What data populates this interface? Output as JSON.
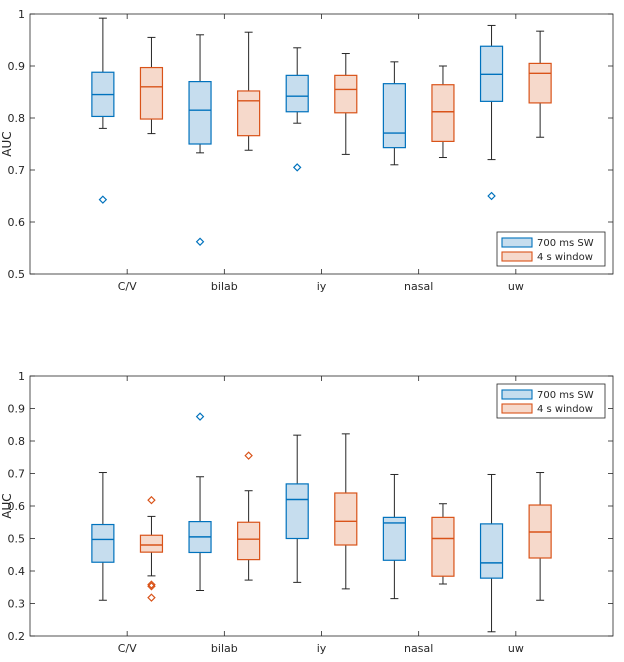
{
  "chart_data": [
    {
      "type": "boxplot",
      "title": "",
      "xlabel": "",
      "ylabel": "AUC",
      "ylim": [
        0.5,
        1.0
      ],
      "yticks": [
        0.5,
        0.6,
        0.7,
        0.8,
        0.9,
        1.0
      ],
      "categories": [
        "C/V",
        "bilab",
        "iy",
        "nasal",
        "uw"
      ],
      "legend": {
        "position": "bottom-right"
      },
      "series": [
        {
          "name": "700 ms SW",
          "color": "#0072BD",
          "fill": "#C6DDEE",
          "boxes": [
            {
              "category": "C/V",
              "whisker_low": 0.78,
              "q1": 0.803,
              "median": 0.845,
              "q3": 0.888,
              "whisker_high": 0.992,
              "outliers": [
                0.643
              ]
            },
            {
              "category": "bilab",
              "whisker_low": 0.733,
              "q1": 0.75,
              "median": 0.815,
              "q3": 0.87,
              "whisker_high": 0.96,
              "outliers": [
                0.562
              ]
            },
            {
              "category": "iy",
              "whisker_low": 0.79,
              "q1": 0.812,
              "median": 0.842,
              "q3": 0.882,
              "whisker_high": 0.935,
              "outliers": [
                0.705
              ]
            },
            {
              "category": "nasal",
              "whisker_low": 0.71,
              "q1": 0.743,
              "median": 0.771,
              "q3": 0.866,
              "whisker_high": 0.908,
              "outliers": []
            },
            {
              "category": "uw",
              "whisker_low": 0.72,
              "q1": 0.832,
              "median": 0.884,
              "q3": 0.938,
              "whisker_high": 0.978,
              "outliers": [
                0.65
              ]
            }
          ]
        },
        {
          "name": "4 s window",
          "color": "#D95319",
          "fill": "#F6D9CB",
          "boxes": [
            {
              "category": "C/V",
              "whisker_low": 0.77,
              "q1": 0.798,
              "median": 0.86,
              "q3": 0.897,
              "whisker_high": 0.955,
              "outliers": []
            },
            {
              "category": "bilab",
              "whisker_low": 0.738,
              "q1": 0.766,
              "median": 0.833,
              "q3": 0.852,
              "whisker_high": 0.965,
              "outliers": []
            },
            {
              "category": "iy",
              "whisker_low": 0.73,
              "q1": 0.81,
              "median": 0.855,
              "q3": 0.882,
              "whisker_high": 0.924,
              "outliers": []
            },
            {
              "category": "nasal",
              "whisker_low": 0.724,
              "q1": 0.755,
              "median": 0.812,
              "q3": 0.864,
              "whisker_high": 0.9,
              "outliers": []
            },
            {
              "category": "uw",
              "whisker_low": 0.763,
              "q1": 0.829,
              "median": 0.886,
              "q3": 0.905,
              "whisker_high": 0.967,
              "outliers": []
            }
          ]
        }
      ]
    },
    {
      "type": "boxplot",
      "title": "",
      "xlabel": "",
      "ylabel": "AUC",
      "ylim": [
        0.2,
        1.0
      ],
      "yticks": [
        0.2,
        0.3,
        0.4,
        0.5,
        0.6,
        0.7,
        0.8,
        0.9,
        1.0
      ],
      "categories": [
        "C/V",
        "bilab",
        "iy",
        "nasal",
        "uw"
      ],
      "legend": {
        "position": "top-right"
      },
      "series": [
        {
          "name": "700 ms SW",
          "color": "#0072BD",
          "fill": "#C6DDEE",
          "boxes": [
            {
              "category": "C/V",
              "whisker_low": 0.31,
              "q1": 0.427,
              "median": 0.497,
              "q3": 0.543,
              "whisker_high": 0.703,
              "outliers": []
            },
            {
              "category": "bilab",
              "whisker_low": 0.34,
              "q1": 0.457,
              "median": 0.505,
              "q3": 0.552,
              "whisker_high": 0.69,
              "outliers": [
                0.875
              ]
            },
            {
              "category": "iy",
              "whisker_low": 0.365,
              "q1": 0.5,
              "median": 0.62,
              "q3": 0.668,
              "whisker_high": 0.818,
              "outliers": []
            },
            {
              "category": "nasal",
              "whisker_low": 0.315,
              "q1": 0.433,
              "median": 0.548,
              "q3": 0.565,
              "whisker_high": 0.697,
              "outliers": []
            },
            {
              "category": "uw",
              "whisker_low": 0.213,
              "q1": 0.378,
              "median": 0.425,
              "q3": 0.545,
              "whisker_high": 0.697,
              "outliers": []
            }
          ]
        },
        {
          "name": "4 s window",
          "color": "#D95319",
          "fill": "#F6D9CB",
          "boxes": [
            {
              "category": "C/V",
              "whisker_low": 0.385,
              "q1": 0.458,
              "median": 0.48,
              "q3": 0.51,
              "whisker_high": 0.568,
              "outliers": [
                0.618,
                0.358,
                0.353,
                0.318
              ]
            },
            {
              "category": "bilab",
              "whisker_low": 0.372,
              "q1": 0.435,
              "median": 0.498,
              "q3": 0.55,
              "whisker_high": 0.647,
              "outliers": [
                0.755
              ]
            },
            {
              "category": "iy",
              "whisker_low": 0.345,
              "q1": 0.48,
              "median": 0.553,
              "q3": 0.64,
              "whisker_high": 0.822,
              "outliers": []
            },
            {
              "category": "nasal",
              "whisker_low": 0.36,
              "q1": 0.384,
              "median": 0.5,
              "q3": 0.565,
              "whisker_high": 0.607,
              "outliers": []
            },
            {
              "category": "uw",
              "whisker_low": 0.31,
              "q1": 0.44,
              "median": 0.52,
              "q3": 0.603,
              "whisker_high": 0.703,
              "outliers": []
            }
          ]
        }
      ]
    }
  ]
}
